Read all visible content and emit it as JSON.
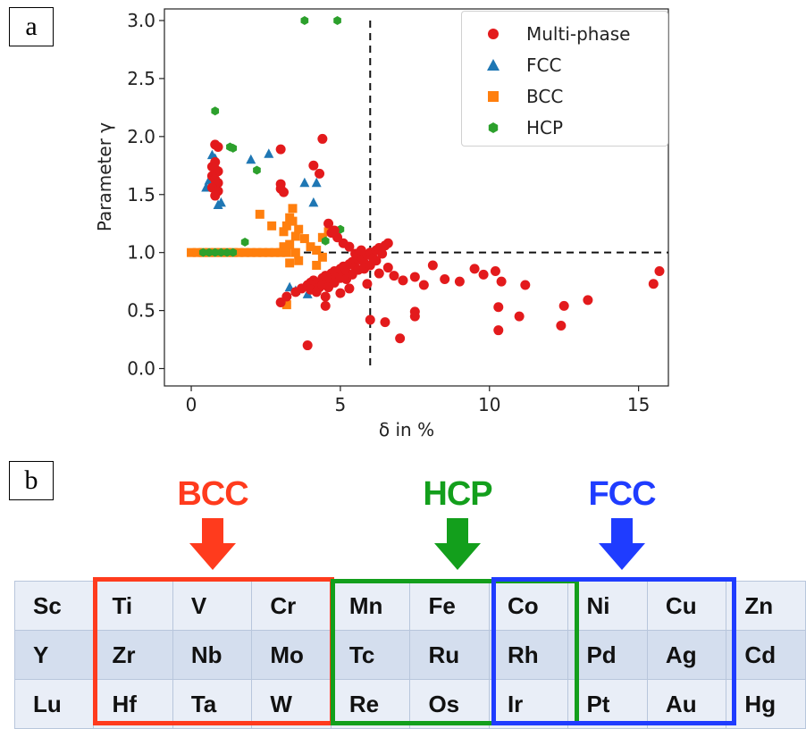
{
  "panel_labels": {
    "a": "a",
    "b": "b"
  },
  "chart_data": {
    "type": "scatter",
    "xlabel": "δ in %",
    "ylabel": "Parameter γ",
    "xlim": [
      -0.9,
      16.0
    ],
    "ylim": [
      -0.15,
      3.1
    ],
    "xticks": [
      0,
      5,
      10,
      15
    ],
    "yticks": [
      0.0,
      0.5,
      1.0,
      1.5,
      2.0,
      2.5,
      3.0
    ],
    "grid": false,
    "legend_placement": "top-right",
    "reference_lines": [
      {
        "orientation": "vertical",
        "x": 6.0,
        "y_from": 0.0,
        "y_to": 3.0,
        "style": "dashed"
      },
      {
        "orientation": "horizontal",
        "y": 1.0,
        "x_from": 0.0,
        "x_to": 16.0,
        "style": "dashed"
      }
    ],
    "series": [
      {
        "name": "Multi-phase",
        "marker": "circle",
        "color": "#e31a1c",
        "points": [
          [
            0.8,
            1.93
          ],
          [
            0.9,
            1.91
          ],
          [
            0.8,
            1.78
          ],
          [
            0.7,
            1.74
          ],
          [
            0.8,
            1.72
          ],
          [
            0.9,
            1.7
          ],
          [
            0.7,
            1.66
          ],
          [
            0.8,
            1.63
          ],
          [
            0.9,
            1.6
          ],
          [
            0.7,
            1.56
          ],
          [
            0.9,
            1.53
          ],
          [
            0.8,
            1.49
          ],
          [
            3.0,
            1.89
          ],
          [
            3.0,
            1.59
          ],
          [
            3.0,
            1.55
          ],
          [
            3.1,
            1.52
          ],
          [
            4.1,
            1.75
          ],
          [
            4.4,
            1.98
          ],
          [
            4.3,
            1.68
          ],
          [
            3.9,
            0.2
          ],
          [
            4.5,
            0.54
          ],
          [
            3.0,
            0.57
          ],
          [
            3.2,
            0.62
          ],
          [
            3.5,
            0.66
          ],
          [
            3.7,
            0.69
          ],
          [
            3.9,
            0.72
          ],
          [
            4.0,
            0.74
          ],
          [
            4.1,
            0.76
          ],
          [
            4.2,
            0.73
          ],
          [
            4.3,
            0.7
          ],
          [
            4.4,
            0.78
          ],
          [
            4.5,
            0.8
          ],
          [
            4.6,
            0.76
          ],
          [
            4.7,
            0.82
          ],
          [
            4.8,
            0.84
          ],
          [
            4.9,
            0.79
          ],
          [
            5.0,
            0.86
          ],
          [
            5.1,
            0.88
          ],
          [
            5.2,
            0.83
          ],
          [
            5.3,
            0.9
          ],
          [
            5.4,
            0.92
          ],
          [
            5.5,
            0.87
          ],
          [
            5.6,
            0.94
          ],
          [
            5.7,
            0.96
          ],
          [
            5.8,
            0.91
          ],
          [
            5.9,
            0.98
          ],
          [
            6.0,
            1.0
          ],
          [
            6.1,
            0.95
          ],
          [
            6.2,
            1.02
          ],
          [
            6.3,
            1.04
          ],
          [
            6.4,
            0.99
          ],
          [
            6.5,
            1.06
          ],
          [
            6.6,
            1.08
          ],
          [
            4.0,
            0.68
          ],
          [
            4.2,
            0.66
          ],
          [
            4.4,
            0.72
          ],
          [
            4.6,
            0.7
          ],
          [
            4.8,
            0.74
          ],
          [
            5.0,
            0.78
          ],
          [
            5.2,
            0.77
          ],
          [
            5.4,
            0.81
          ],
          [
            5.6,
            0.85
          ],
          [
            5.8,
            0.86
          ],
          [
            6.0,
            0.89
          ],
          [
            6.2,
            0.93
          ],
          [
            5.5,
            0.99
          ],
          [
            5.7,
            1.02
          ],
          [
            5.3,
            1.05
          ],
          [
            5.1,
            1.08
          ],
          [
            4.9,
            1.13
          ],
          [
            4.7,
            1.17
          ],
          [
            4.6,
            1.25
          ],
          [
            4.8,
            1.19
          ],
          [
            4.5,
            0.62
          ],
          [
            5.0,
            0.65
          ],
          [
            5.3,
            0.69
          ],
          [
            5.9,
            0.73
          ],
          [
            6.3,
            0.82
          ],
          [
            6.6,
            0.87
          ],
          [
            6.8,
            0.8
          ],
          [
            7.1,
            0.76
          ],
          [
            7.5,
            0.79
          ],
          [
            7.8,
            0.72
          ],
          [
            8.1,
            0.89
          ],
          [
            8.5,
            0.77
          ],
          [
            9.0,
            0.75
          ],
          [
            9.5,
            0.86
          ],
          [
            9.8,
            0.81
          ],
          [
            10.2,
            0.84
          ],
          [
            10.4,
            0.75
          ],
          [
            11.2,
            0.72
          ],
          [
            6.0,
            0.42
          ],
          [
            6.5,
            0.4
          ],
          [
            7.0,
            0.26
          ],
          [
            7.5,
            0.45
          ],
          [
            7.5,
            0.49
          ],
          [
            10.3,
            0.33
          ],
          [
            10.3,
            0.53
          ],
          [
            11.0,
            0.45
          ],
          [
            12.4,
            0.37
          ],
          [
            12.5,
            0.54
          ],
          [
            13.3,
            0.59
          ],
          [
            15.5,
            0.73
          ],
          [
            15.7,
            0.84
          ]
        ]
      },
      {
        "name": "FCC",
        "marker": "triangle",
        "color": "#1f77b4",
        "points": [
          [
            0.5,
            1.56
          ],
          [
            0.6,
            1.62
          ],
          [
            0.7,
            1.84
          ],
          [
            0.8,
            1.81
          ],
          [
            0.9,
            1.41
          ],
          [
            1.0,
            1.43
          ],
          [
            2.0,
            1.8
          ],
          [
            2.6,
            1.85
          ],
          [
            3.8,
            1.6
          ],
          [
            4.2,
            1.6
          ],
          [
            4.1,
            1.43
          ],
          [
            3.5,
            0.67
          ],
          [
            3.3,
            0.7
          ],
          [
            3.9,
            0.64
          ]
        ]
      },
      {
        "name": "BCC",
        "marker": "square",
        "color": "#ff7f0e",
        "points": [
          [
            0.0,
            1.0
          ],
          [
            0.2,
            1.0
          ],
          [
            0.4,
            1.0
          ],
          [
            0.6,
            1.0
          ],
          [
            0.8,
            1.0
          ],
          [
            1.0,
            1.0
          ],
          [
            1.2,
            1.0
          ],
          [
            1.4,
            1.0
          ],
          [
            1.6,
            1.0
          ],
          [
            1.8,
            1.0
          ],
          [
            2.0,
            1.0
          ],
          [
            2.2,
            1.0
          ],
          [
            2.4,
            1.0
          ],
          [
            2.6,
            1.0
          ],
          [
            2.8,
            1.0
          ],
          [
            3.0,
            1.0
          ],
          [
            3.2,
            1.0
          ],
          [
            3.5,
            1.0
          ],
          [
            2.3,
            1.33
          ],
          [
            2.7,
            1.23
          ],
          [
            3.1,
            1.18
          ],
          [
            3.2,
            1.23
          ],
          [
            3.3,
            1.3
          ],
          [
            3.4,
            1.38
          ],
          [
            3.4,
            1.27
          ],
          [
            3.5,
            1.14
          ],
          [
            3.3,
            1.07
          ],
          [
            3.1,
            1.05
          ],
          [
            3.6,
            1.2
          ],
          [
            3.8,
            1.12
          ],
          [
            4.0,
            1.05
          ],
          [
            4.4,
            1.13
          ],
          [
            4.6,
            1.18
          ],
          [
            4.2,
            1.02
          ],
          [
            3.3,
            0.91
          ],
          [
            3.6,
            0.93
          ],
          [
            4.2,
            0.89
          ],
          [
            4.4,
            0.96
          ],
          [
            3.2,
            0.55
          ]
        ]
      },
      {
        "name": "HCP",
        "marker": "hexagon",
        "color": "#2ca02c",
        "points": [
          [
            0.4,
            1.0
          ],
          [
            0.6,
            1.0
          ],
          [
            0.8,
            1.0
          ],
          [
            1.0,
            1.0
          ],
          [
            1.2,
            1.0
          ],
          [
            1.4,
            1.0
          ],
          [
            0.8,
            2.22
          ],
          [
            1.3,
            1.91
          ],
          [
            1.4,
            1.9
          ],
          [
            2.2,
            1.71
          ],
          [
            1.8,
            1.09
          ],
          [
            3.8,
            3.0
          ],
          [
            4.9,
            3.0
          ],
          [
            4.5,
            1.1
          ],
          [
            5.0,
            1.2
          ]
        ]
      }
    ]
  },
  "legend": {
    "items": [
      {
        "label": "Multi-phase",
        "marker": "circle",
        "color": "#e31a1c"
      },
      {
        "label": "FCC",
        "marker": "triangle",
        "color": "#1f77b4"
      },
      {
        "label": "BCC",
        "marker": "square",
        "color": "#ff7f0e"
      },
      {
        "label": "HCP",
        "marker": "hexagon",
        "color": "#2ca02c"
      }
    ]
  },
  "structure_arrows": [
    {
      "label": "BCC",
      "color": "#ff3b1d",
      "icon": "down-arrow-icon"
    },
    {
      "label": "HCP",
      "color": "#139f1c",
      "icon": "down-arrow-icon"
    },
    {
      "label": "FCC",
      "color": "#1f3cff",
      "icon": "down-arrow-icon"
    }
  ],
  "periodic_table": {
    "rows": [
      [
        "Sc",
        "Ti",
        "V",
        "Cr",
        "Mn",
        "Fe",
        "Co",
        "Ni",
        "Cu",
        "Zn"
      ],
      [
        "Y",
        "Zr",
        "Nb",
        "Mo",
        "Tc",
        "Ru",
        "Rh",
        "Pd",
        "Ag",
        "Cd"
      ],
      [
        "Lu",
        "Hf",
        "Ta",
        "W",
        "Re",
        "Os",
        "Ir",
        "Pt",
        "Au",
        "Hg"
      ]
    ],
    "groups": [
      {
        "label": "BCC",
        "color": "#ff3b1d",
        "columns": [
          1,
          3
        ]
      },
      {
        "label": "HCP",
        "color": "#139f1c",
        "columns": [
          4,
          6
        ]
      },
      {
        "label": "FCC",
        "color": "#1f3cff",
        "columns": [
          6,
          8
        ]
      }
    ]
  }
}
